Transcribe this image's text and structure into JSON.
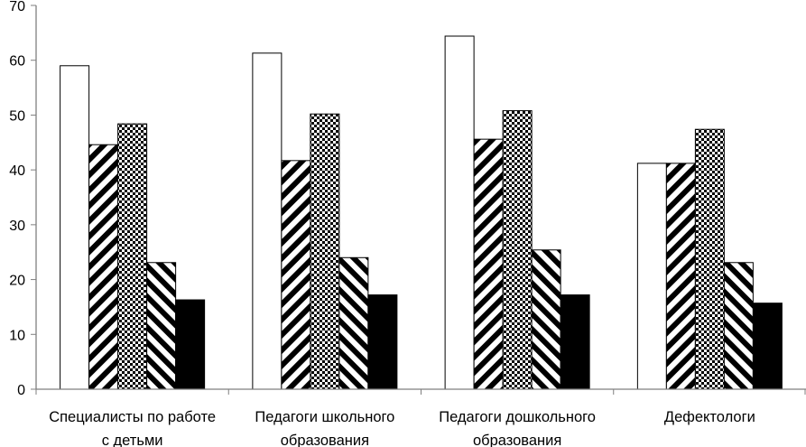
{
  "chart_data": {
    "type": "bar",
    "categories": [
      [
        "Специалисты по работе",
        "с детьми"
      ],
      [
        "Педагоги школьного",
        "образования"
      ],
      [
        "Педагоги дошкольного",
        "образования"
      ],
      [
        "Дефектологи"
      ]
    ],
    "series": [
      {
        "values": [
          59,
          61.3,
          64.4,
          41.2
        ],
        "pattern": "white"
      },
      {
        "values": [
          44.6,
          41.7,
          45.6,
          41.2
        ],
        "pattern": "stripe-back"
      },
      {
        "values": [
          48.4,
          50.2,
          50.8,
          47.4
        ],
        "pattern": "checker"
      },
      {
        "values": [
          23.1,
          24,
          25.4,
          23.1
        ],
        "pattern": "stripe-forward"
      },
      {
        "values": [
          16.3,
          17.2,
          17.2,
          15.7
        ],
        "pattern": "black"
      }
    ],
    "ylim": [
      0,
      70
    ],
    "yticks": [
      0,
      10,
      20,
      30,
      40,
      50,
      60,
      70
    ],
    "grid": false,
    "legend": "none",
    "colors": {
      "axis": "#7f7f7f",
      "bar_stroke": "#000000",
      "fill_dark": "#000000",
      "fill_light": "#ffffff"
    }
  }
}
